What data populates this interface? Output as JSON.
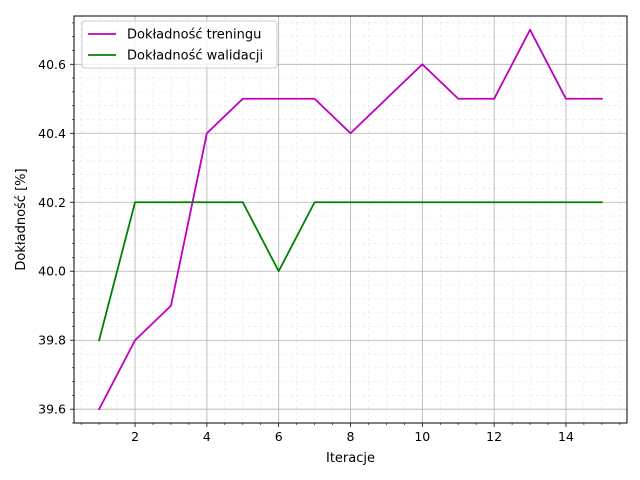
{
  "chart_data": {
    "type": "line",
    "title": "",
    "xlabel": "Iteracje",
    "ylabel": "Dokładność [%]",
    "x": [
      1,
      2,
      3,
      4,
      5,
      6,
      7,
      8,
      9,
      10,
      11,
      12,
      13,
      14,
      15
    ],
    "xlim": [
      0.3,
      15.7
    ],
    "ylim": [
      39.56,
      40.74
    ],
    "x_ticks": [
      2,
      4,
      6,
      8,
      10,
      12,
      14
    ],
    "x_tick_labels": [
      "2",
      "4",
      "6",
      "8",
      "10",
      "12",
      "14"
    ],
    "y_ticks": [
      39.6,
      39.8,
      40.0,
      40.2,
      40.4,
      40.6
    ],
    "y_tick_labels": [
      "39.6",
      "39.8",
      "40.0",
      "40.2",
      "40.4",
      "40.6"
    ],
    "grid": true,
    "minor_grid": true,
    "legend_position": "top-left",
    "series": [
      {
        "name": "Dokładność treningu",
        "color": "#bf00bf",
        "values": [
          39.6,
          39.8,
          39.9,
          40.4,
          40.5,
          40.5,
          40.5,
          40.4,
          40.5,
          40.6,
          40.5,
          40.5,
          40.7,
          40.5,
          40.5
        ]
      },
      {
        "name": "Dokładność walidacji",
        "color": "#008000",
        "values": [
          39.8,
          40.2,
          40.2,
          40.2,
          40.2,
          40.0,
          40.2,
          40.2,
          40.2,
          40.2,
          40.2,
          40.2,
          40.2,
          40.2,
          40.2
        ]
      }
    ]
  }
}
